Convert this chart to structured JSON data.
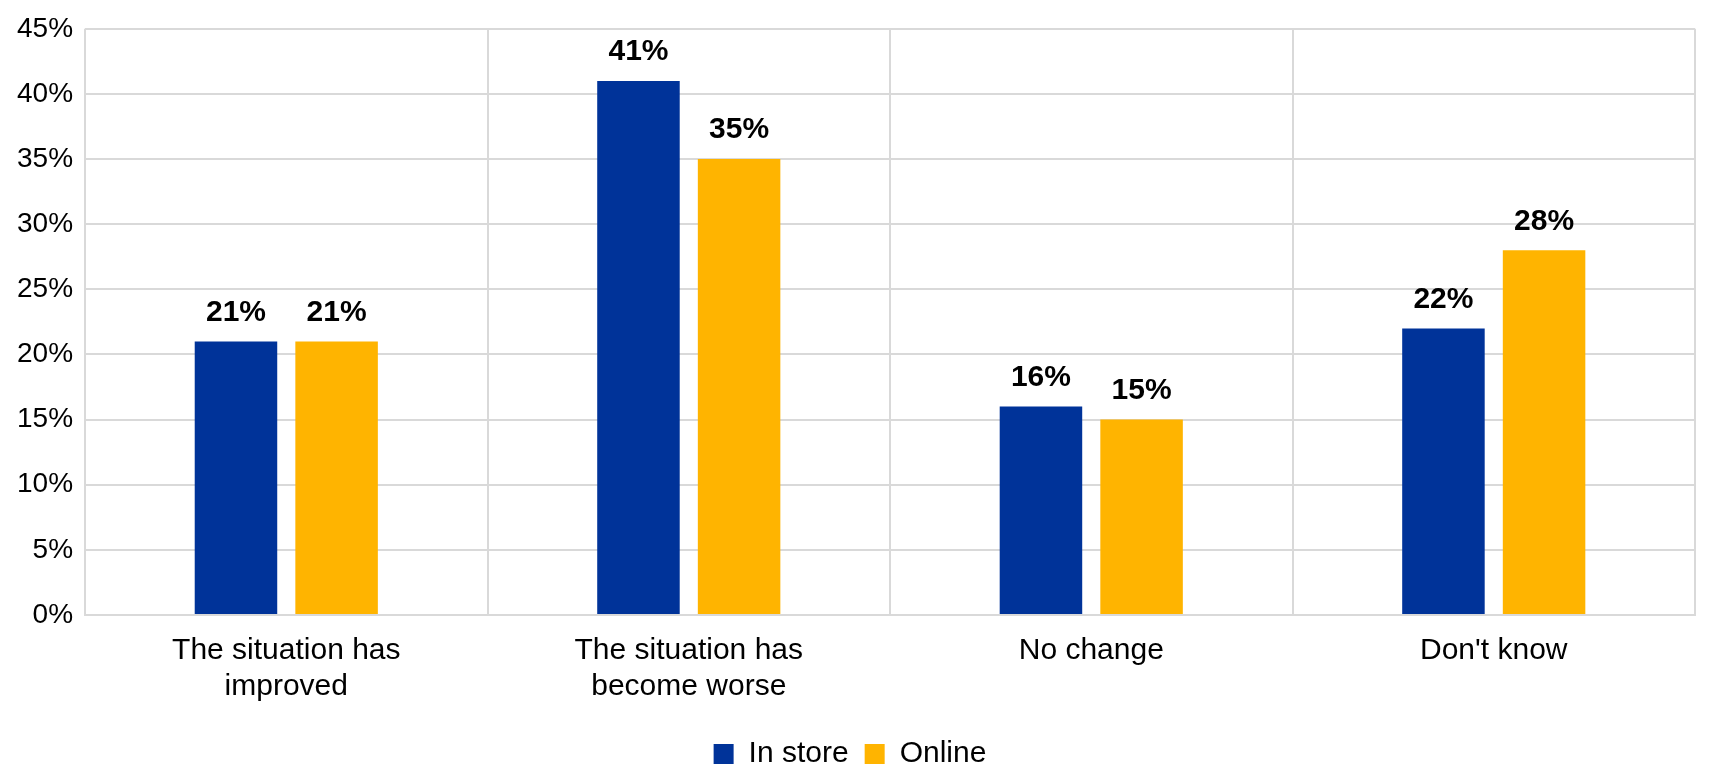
{
  "chart_data": {
    "type": "bar",
    "categories": [
      "The situation has improved",
      "The situation has become worse",
      "No change",
      "Don't know"
    ],
    "series": [
      {
        "name": "In store",
        "color": "#003399",
        "values": [
          21,
          41,
          16,
          22
        ],
        "value_labels": [
          "21%",
          "41%",
          "16%",
          "22%"
        ]
      },
      {
        "name": "Online",
        "color": "#ffb400",
        "values": [
          21,
          35,
          15,
          28
        ],
        "value_labels": [
          "21%",
          "35%",
          "15%",
          "28%"
        ]
      }
    ],
    "ylim": [
      0,
      45
    ],
    "yticks": [
      {
        "value": 0,
        "label": "0%"
      },
      {
        "value": 5,
        "label": "5%"
      },
      {
        "value": 10,
        "label": "10%"
      },
      {
        "value": 15,
        "label": "15%"
      },
      {
        "value": 20,
        "label": "20%"
      },
      {
        "value": 25,
        "label": "25%"
      },
      {
        "value": 30,
        "label": "30%"
      },
      {
        "value": 35,
        "label": "35%"
      },
      {
        "value": 40,
        "label": "40%"
      },
      {
        "value": 45,
        "label": "45%"
      }
    ],
    "grid": true,
    "legend": "bottom"
  }
}
